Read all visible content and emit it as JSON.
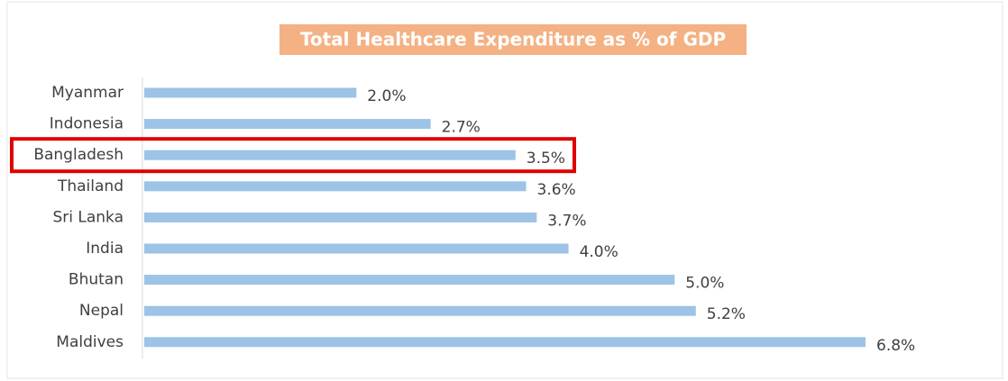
{
  "chart_data": {
    "type": "bar",
    "orientation": "horizontal",
    "title": "Total Healthcare Expenditure as % of GDP",
    "title_background": "#f4b183",
    "categories": [
      "Myanmar",
      "Indonesia",
      "Bangladesh",
      "Thailand",
      "Sri Lanka",
      "India",
      "Bhutan",
      "Nepal",
      "Maldives"
    ],
    "values": [
      2.0,
      2.7,
      3.5,
      3.6,
      3.7,
      4.0,
      5.0,
      5.2,
      6.8
    ],
    "value_labels": [
      "2.0%",
      "2.7%",
      "3.5%",
      "3.6%",
      "3.7%",
      "4.0%",
      "5.0%",
      "5.2%",
      "6.8%"
    ],
    "color": "#9dc3e6",
    "highlight": "Bangladesh",
    "highlight_color": "#e00000",
    "grid": false
  }
}
